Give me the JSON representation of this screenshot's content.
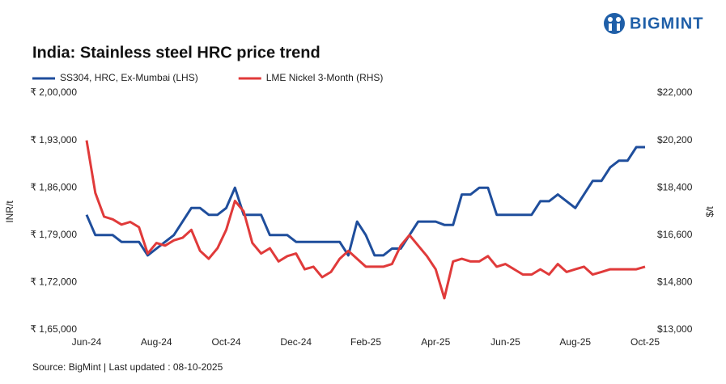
{
  "brand": "BIGMINT",
  "chart_data": {
    "type": "line",
    "title": "India: Stainless steel HRC price trend",
    "source": "Source: BigMint | Last updated : 08-10-2025",
    "y_label": "INR/t",
    "y2_label": "$/t",
    "categories": [
      "Jun-24",
      null,
      null,
      null,
      null,
      null,
      null,
      null,
      "Aug-24",
      null,
      null,
      null,
      null,
      null,
      null,
      null,
      "Oct-24",
      null,
      null,
      null,
      null,
      null,
      null,
      null,
      "Dec-24",
      null,
      null,
      null,
      null,
      null,
      null,
      null,
      "Feb-25",
      null,
      null,
      null,
      null,
      null,
      null,
      null,
      "Apr-25",
      null,
      null,
      null,
      null,
      null,
      null,
      null,
      "Jun-25",
      null,
      null,
      null,
      null,
      null,
      null,
      null,
      "Aug-25",
      null,
      null,
      null,
      null,
      null,
      null,
      null,
      "Oct-25"
    ],
    "ylim": [
      165000,
      200000
    ],
    "yticks": [
      {
        "value": 165000,
        "label": "₹ 1,65,000"
      },
      {
        "value": 172000,
        "label": "₹ 1,72,000"
      },
      {
        "value": 179000,
        "label": "₹ 1,79,000"
      },
      {
        "value": 186000,
        "label": "₹ 1,86,000"
      },
      {
        "value": 193000,
        "label": "₹ 1,93,000"
      },
      {
        "value": 200000,
        "label": "₹ 2,00,000"
      }
    ],
    "y2lim": [
      13000,
      22000
    ],
    "y2ticks": [
      {
        "value": 13000,
        "label": "$13,000"
      },
      {
        "value": 14800,
        "label": "$14,800"
      },
      {
        "value": 16600,
        "label": "$16,600"
      },
      {
        "value": 18400,
        "label": "$18,400"
      },
      {
        "value": 20200,
        "label": "$20,200"
      },
      {
        "value": 22000,
        "label": "$22,000"
      }
    ],
    "grid": false,
    "legend": "top-left",
    "series": [
      {
        "name": "SS304, HRC, Ex-Mumbai (LHS)",
        "color": "#1f4e9c",
        "axis": "y",
        "values": [
          182000,
          179000,
          179000,
          179000,
          178000,
          178000,
          178000,
          176000,
          177000,
          178000,
          179000,
          181000,
          183000,
          183000,
          182000,
          182000,
          183000,
          186000,
          182000,
          182000,
          182000,
          179000,
          179000,
          179000,
          178000,
          178000,
          178000,
          178000,
          178000,
          178000,
          176000,
          181000,
          179000,
          176000,
          176000,
          177000,
          177000,
          179000,
          181000,
          181000,
          181000,
          180500,
          180500,
          185000,
          185000,
          186000,
          186000,
          182000,
          182000,
          182000,
          182000,
          182000,
          184000,
          184000,
          185000,
          184000,
          183000,
          185000,
          187000,
          187000,
          189000,
          190000,
          190000,
          192000,
          192000
        ]
      },
      {
        "name": "LME Nickel 3-Month (RHS)",
        "color": "#e03a3a",
        "axis": "y2",
        "values": [
          20200,
          18200,
          17300,
          17200,
          17000,
          17100,
          16900,
          15900,
          16300,
          16200,
          16400,
          16500,
          16800,
          16000,
          15700,
          16100,
          16800,
          17900,
          17500,
          16300,
          15900,
          16100,
          15600,
          15800,
          15900,
          15300,
          15400,
          15000,
          15200,
          15700,
          16000,
          15700,
          15400,
          15400,
          15400,
          15500,
          16200,
          16600,
          16200,
          15800,
          15300,
          14200,
          15600,
          15700,
          15600,
          15600,
          15800,
          15400,
          15500,
          15300,
          15100,
          15100,
          15300,
          15100,
          15500,
          15200,
          15300,
          15400,
          15100,
          15200,
          15300,
          15300,
          15300,
          15300,
          15400
        ]
      }
    ]
  }
}
